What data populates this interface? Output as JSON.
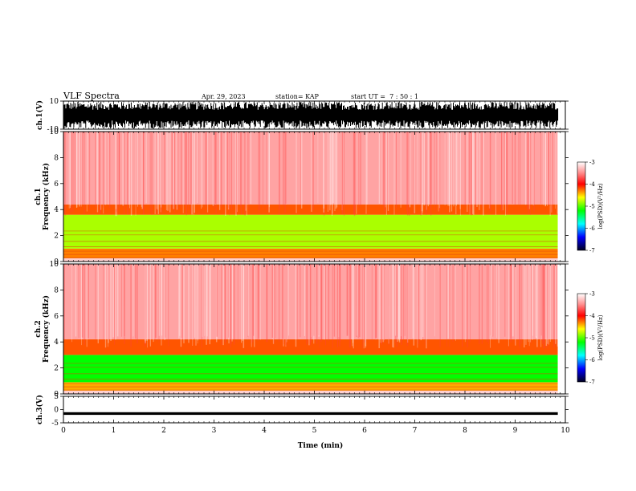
{
  "chart_data": {
    "type": "heatmap",
    "title": "VLF Spectra",
    "date": "Apr. 29, 2023",
    "station": "station= KAP",
    "start_ut": "start UT =  7 : 50 : 1",
    "x": {
      "label": "Time (min)",
      "range": [
        0,
        10
      ],
      "ticks": [
        "0",
        "1",
        "2",
        "3",
        "4",
        "5",
        "6",
        "7",
        "8",
        "9",
        "10"
      ],
      "data_end": 9.85
    },
    "panels": [
      {
        "name": "ch.1 waveform",
        "ylabel": "ch.1(V)",
        "ylim": [
          -10,
          10
        ],
        "yticks": [
          "10",
          "-10"
        ],
        "amplitude_fraction": 0.95
      },
      {
        "name": "ch.1 spectrogram",
        "ylabel_channel": "ch.1",
        "ylabel": "Frequency (kHz)",
        "ylim": [
          0,
          10
        ],
        "yticks": [
          "0",
          "2",
          "4",
          "6",
          "8",
          "10"
        ],
        "colorbar": {
          "label": "log(PSD)(V²/Hz)",
          "range": [
            -7,
            -3
          ],
          "ticks": [
            "-3",
            "-4",
            "-5",
            "-6",
            "-7"
          ]
        },
        "bands": [
          {
            "from_khz": 0,
            "to_khz": 0.25,
            "level": -3.2
          },
          {
            "from_khz": 0.25,
            "to_khz": 1.0,
            "level": -4.3
          },
          {
            "from_khz": 1.0,
            "to_khz": 3.6,
            "level": -4.8
          },
          {
            "from_khz": 3.6,
            "to_khz": 4.4,
            "level": -4.2
          },
          {
            "from_khz": 4.4,
            "to_khz": 10,
            "level": -3.4
          }
        ]
      },
      {
        "name": "ch.2 spectrogram",
        "ylabel_channel": "ch.2",
        "ylabel": "Frequency (kHz)",
        "ylim": [
          0,
          10
        ],
        "yticks": [
          "0",
          "2",
          "4",
          "6",
          "8",
          "10"
        ],
        "colorbar": {
          "label": "log(PSD)(V²/Hz)",
          "range": [
            -7,
            -3
          ],
          "ticks": [
            "-3",
            "-4",
            "-5",
            "-6",
            "-7"
          ]
        },
        "bands": [
          {
            "from_khz": 0,
            "to_khz": 0.25,
            "level": -3.2
          },
          {
            "from_khz": 0.25,
            "to_khz": 0.9,
            "level": -4.4
          },
          {
            "from_khz": 0.9,
            "to_khz": 3.0,
            "level": -5.2
          },
          {
            "from_khz": 3.0,
            "to_khz": 4.2,
            "level": -4.2
          },
          {
            "from_khz": 4.2,
            "to_khz": 10,
            "level": -3.4
          }
        ]
      },
      {
        "name": "ch.3 waveform",
        "ylabel": "ch.3(V)",
        "ylim": [
          -5,
          5
        ],
        "yticks": [
          "5",
          "0",
          "-5"
        ],
        "signal_center": -1.5,
        "amplitude": 0.5
      }
    ]
  }
}
